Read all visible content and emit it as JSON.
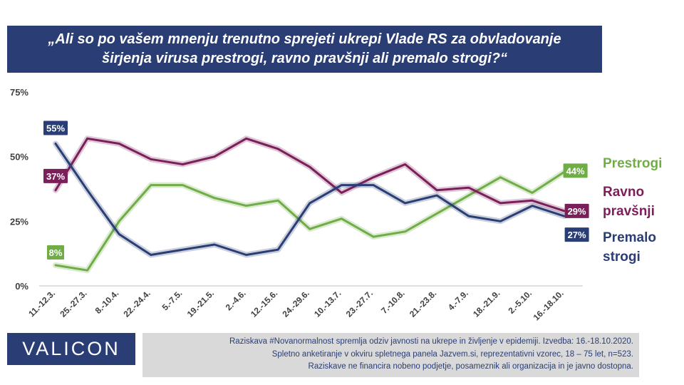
{
  "title": {
    "line1": "„Ali so po vašem mnenju trenutno sprejeti ukrepi Vlade RS za obvladovanje",
    "line2": "širjenja virusa prestrogi, ravno pravšnji ali premalo strogi?“"
  },
  "chart_data": {
    "type": "line",
    "categories": [
      "11.-12.3.",
      "25.-27.3.",
      "8.-10.4.",
      "22.-24.4.",
      "5.-7.5.",
      "19.-21.5.",
      "2.-4.6.",
      "12.-15.6.",
      "24.-29.6.",
      "10.-13.7.",
      "23.-27.7.",
      "7.-10.8.",
      "21.-23.8.",
      "4.-7.9.",
      "18.-21.9.",
      "2.-5.10.",
      "16.-18.10."
    ],
    "y_ticks": [
      "0%",
      "25%",
      "50%",
      "75%"
    ],
    "ylim": [
      0,
      75
    ],
    "grid": false,
    "legend_position": "right",
    "series": [
      {
        "name": "Prestrogi",
        "color": "#70ad47",
        "values": [
          8,
          6,
          25,
          39,
          39,
          34,
          31,
          33,
          22,
          26,
          19,
          21,
          28,
          35,
          42,
          36,
          44
        ],
        "labels": [
          {
            "index": 0,
            "text": "8%"
          },
          {
            "index": 16,
            "text": "44%"
          }
        ]
      },
      {
        "name": "Ravno pravšnji",
        "color": "#7b1f5a",
        "values": [
          37,
          57,
          55,
          49,
          47,
          50,
          57,
          53,
          46,
          36,
          42,
          47,
          37,
          38,
          32,
          33,
          29
        ],
        "labels": [
          {
            "index": 0,
            "text": "37%"
          },
          {
            "index": 16,
            "text": "29%"
          }
        ]
      },
      {
        "name": "Premalo strogi",
        "color": "#2a3e75",
        "values": [
          55,
          37,
          20,
          12,
          14,
          16,
          12,
          14,
          32,
          39,
          39,
          32,
          35,
          27,
          25,
          31,
          27
        ],
        "labels": [
          {
            "index": 0,
            "text": "55%"
          },
          {
            "index": 16,
            "text": "27%"
          }
        ]
      }
    ]
  },
  "legend": {
    "prestrogi": "Prestrogi",
    "ravno_1": "Ravno",
    "ravno_2": "pravšnji",
    "premalo_1": "Premalo",
    "premalo_2": "strogi"
  },
  "logo": "VALICON",
  "note": {
    "line1": "Raziskava #Novanormalnost spremlja  odziv javnosti  na ukrepe in življenje v epidemiji.  Izvedba: 16.-18.10.2020.",
    "line2": "Spletno anketiranje v okviru  spletnega panela Jazvem.si, reprezentativni vzorec, 18 – 75 let, n=523.",
    "line3": "Raziskave ne financira nobeno podjetje, posameznik ali organizacija in je javno dostopna."
  }
}
